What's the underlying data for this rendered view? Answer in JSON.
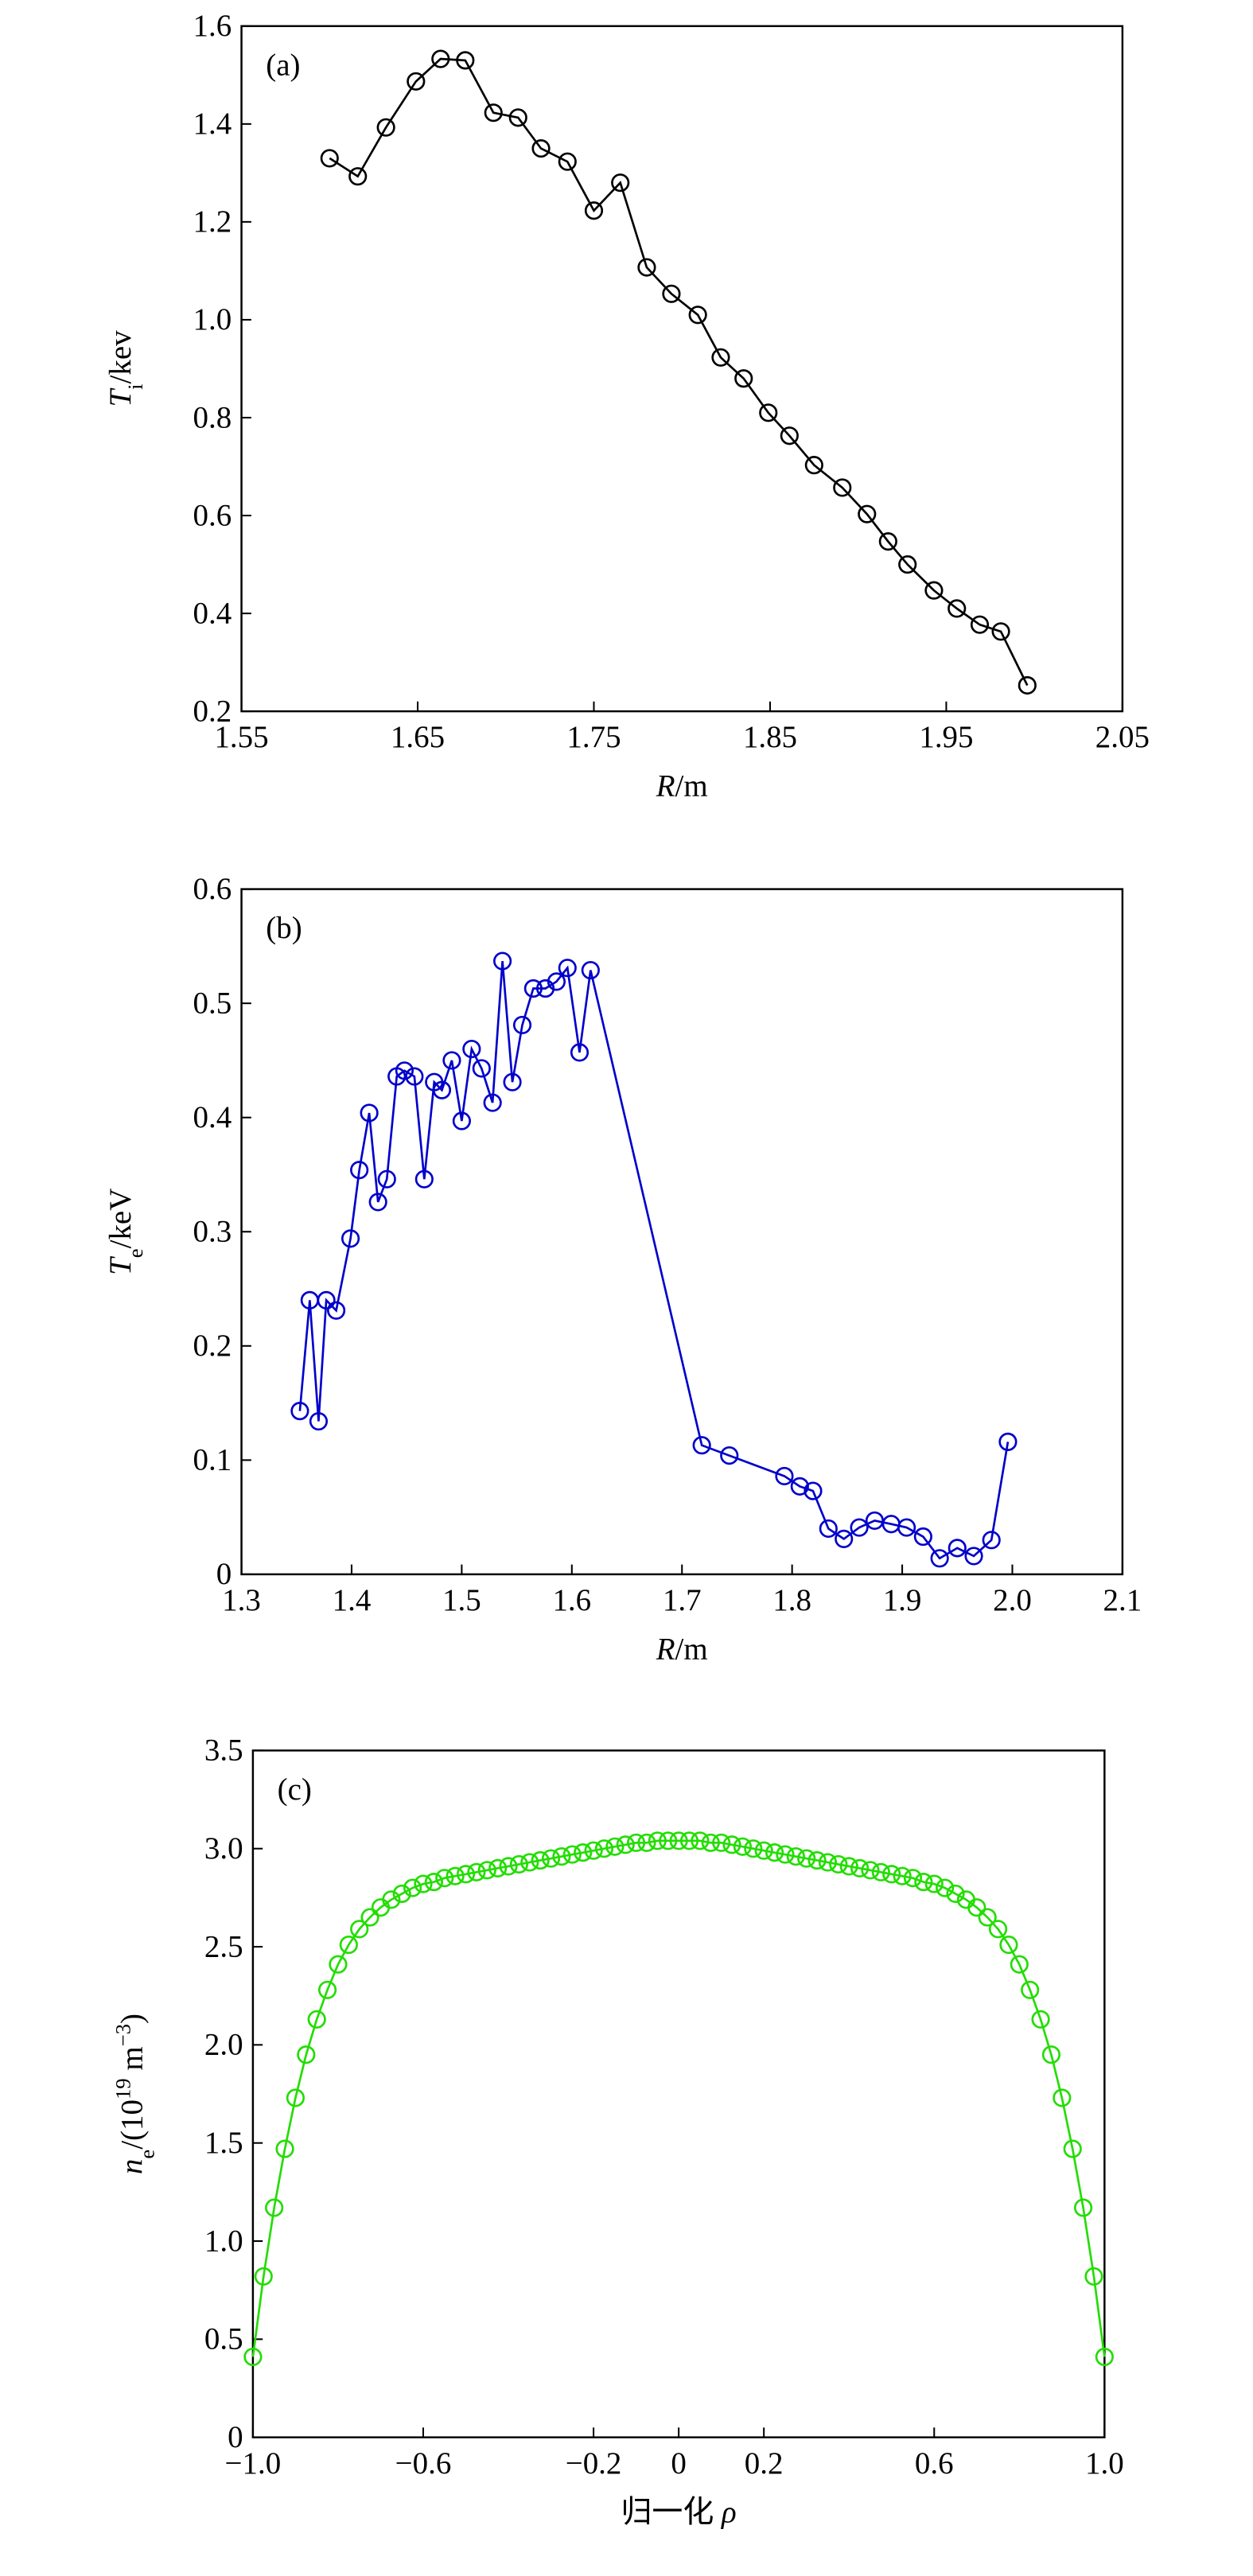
{
  "chart_data": [
    {
      "type": "line",
      "panel": "(a)",
      "ylabel": [
        "T",
        "i",
        "/kev"
      ],
      "xlabel": [
        "R",
        "/m"
      ],
      "color": "#000000",
      "xlim": [
        1.55,
        2.05
      ],
      "xticks": [
        1.55,
        1.65,
        1.75,
        1.85,
        1.95,
        2.05
      ],
      "ylim": [
        0.2,
        1.6
      ],
      "yticks": [
        0.2,
        0.4,
        0.6,
        0.8,
        {
          "value": 1,
          "label": "1.0"
        },
        1.2,
        1.4,
        1.6
      ],
      "x": [
        1.6,
        1.616,
        1.632,
        1.649,
        1.663,
        1.677,
        1.693,
        1.707,
        1.72,
        1.735,
        1.75,
        1.765,
        1.78,
        1.794,
        1.809,
        1.822,
        1.835,
        1.849,
        1.861,
        1.875,
        1.891,
        1.905,
        1.917,
        1.928,
        1.943,
        1.956,
        1.969,
        1.981,
        1.996
      ],
      "values": [
        1.33,
        1.293,
        1.393,
        1.487,
        1.533,
        1.53,
        1.423,
        1.413,
        1.35,
        1.323,
        1.223,
        1.28,
        1.107,
        1.053,
        1.01,
        0.923,
        0.88,
        0.81,
        0.763,
        0.703,
        0.657,
        0.603,
        0.547,
        0.5,
        0.447,
        0.41,
        0.377,
        0.363,
        0.253
      ]
    },
    {
      "type": "line",
      "panel": "(b)",
      "ylabel": [
        "T",
        "e",
        "/keV"
      ],
      "xlabel": [
        "R",
        "/m"
      ],
      "color": "#0000cc",
      "xlim": [
        1.3,
        2.1
      ],
      "xticks": [
        1.3,
        1.4,
        1.5,
        1.6,
        1.7,
        1.8,
        1.9,
        {
          "value": 2,
          "label": "2.0"
        },
        2.1
      ],
      "ylim": [
        0,
        0.6
      ],
      "yticks": [
        0,
        0.1,
        0.2,
        0.3,
        0.4,
        0.5,
        0.6
      ],
      "x": [
        1.353,
        1.362,
        1.37,
        1.377,
        1.386,
        1.399,
        1.407,
        1.416,
        1.424,
        1.432,
        1.441,
        1.448,
        1.457,
        1.466,
        1.475,
        1.482,
        1.491,
        1.5,
        1.509,
        1.518,
        1.528,
        1.537,
        1.546,
        1.555,
        1.565,
        1.576,
        1.586,
        1.596,
        1.607,
        1.617,
        1.718,
        1.743,
        1.793,
        1.807,
        1.819,
        1.833,
        1.847,
        1.861,
        1.875,
        1.89,
        1.904,
        1.919,
        1.934,
        1.95,
        1.965,
        1.981,
        1.996
      ],
      "values": [
        0.143,
        0.24,
        0.134,
        0.24,
        0.231,
        0.294,
        0.354,
        0.404,
        0.326,
        0.346,
        0.436,
        0.441,
        0.436,
        0.346,
        0.431,
        0.424,
        0.45,
        0.397,
        0.46,
        0.443,
        0.413,
        0.537,
        0.431,
        0.481,
        0.513,
        0.513,
        0.519,
        0.531,
        0.457,
        0.529,
        0.113,
        0.104,
        0.086,
        0.077,
        0.073,
        0.04,
        0.031,
        0.041,
        0.047,
        0.044,
        0.041,
        0.033,
        0.014,
        0.023,
        0.016,
        0.03,
        0.116
      ]
    },
    {
      "type": "line",
      "panel": "(c)",
      "ylabel": [
        "n",
        "e",
        "/(10",
        "19",
        " m",
        "−3",
        ")"
      ],
      "xlabel": [
        "归一化 ",
        "ρ"
      ],
      "color": "#22dd00",
      "xlim": [
        -1,
        1
      ],
      "xticks": [
        {
          "value": -1,
          "label": "−1.0"
        },
        {
          "value": -0.6,
          "label": "−0.6"
        },
        {
          "value": -0.2,
          "label": "−0.2"
        },
        0,
        0.2,
        0.6,
        {
          "value": 1,
          "label": "1.0"
        }
      ],
      "ylim": [
        0,
        3.5
      ],
      "yticks": [
        0,
        0.5,
        {
          "value": 1,
          "label": "1.0"
        },
        1.5,
        {
          "value": 2,
          "label": "2.0"
        },
        2.5,
        {
          "value": 3,
          "label": "3.0"
        },
        3.5
      ],
      "x": [
        -1,
        -0.975,
        -0.95,
        -0.925,
        -0.9,
        -0.875,
        -0.85,
        -0.825,
        -0.8,
        -0.775,
        -0.75,
        -0.725,
        -0.7,
        -0.675,
        -0.65,
        -0.625,
        -0.6,
        -0.575,
        -0.55,
        -0.525,
        -0.5,
        -0.475,
        -0.45,
        -0.425,
        -0.4,
        -0.375,
        -0.35,
        -0.325,
        -0.3,
        -0.275,
        -0.25,
        -0.225,
        -0.2,
        -0.175,
        -0.15,
        -0.125,
        -0.1,
        -0.075,
        -0.05,
        -0.025,
        0,
        0.025,
        0.05,
        0.075,
        0.1,
        0.125,
        0.15,
        0.175,
        0.2,
        0.225,
        0.25,
        0.275,
        0.3,
        0.325,
        0.35,
        0.375,
        0.4,
        0.425,
        0.45,
        0.475,
        0.5,
        0.525,
        0.55,
        0.575,
        0.6,
        0.625,
        0.65,
        0.675,
        0.7,
        0.725,
        0.75,
        0.775,
        0.8,
        0.825,
        0.85,
        0.875,
        0.9,
        0.925,
        0.95,
        0.975,
        1
      ],
      "values": [
        0.41,
        0.82,
        1.17,
        1.47,
        1.73,
        1.95,
        2.13,
        2.28,
        2.41,
        2.51,
        2.59,
        2.65,
        2.7,
        2.74,
        2.77,
        2.8,
        2.82,
        2.83,
        2.85,
        2.86,
        2.87,
        2.88,
        2.89,
        2.9,
        2.91,
        2.92,
        2.93,
        2.94,
        2.95,
        2.96,
        2.97,
        2.98,
        2.99,
        3.0,
        3.01,
        3.02,
        3.03,
        3.03,
        3.04,
        3.04,
        3.04,
        3.04,
        3.04,
        3.03,
        3.03,
        3.02,
        3.01,
        3.0,
        2.99,
        2.98,
        2.97,
        2.96,
        2.95,
        2.94,
        2.93,
        2.92,
        2.91,
        2.9,
        2.89,
        2.88,
        2.87,
        2.86,
        2.85,
        2.83,
        2.82,
        2.8,
        2.77,
        2.74,
        2.7,
        2.65,
        2.59,
        2.51,
        2.41,
        2.28,
        2.13,
        1.95,
        1.73,
        1.47,
        1.17,
        0.82,
        0.41
      ]
    }
  ]
}
